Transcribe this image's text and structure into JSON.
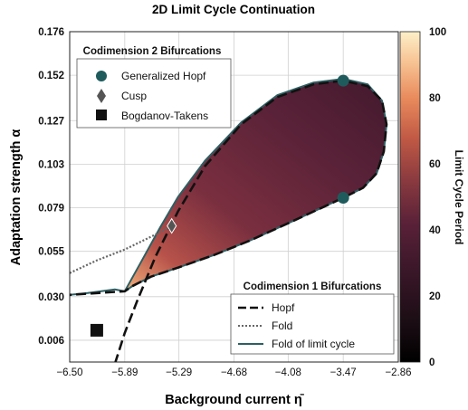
{
  "chart_data": {
    "type": "heatmap",
    "title": "2D Limit Cycle Continuation",
    "xlabel": "Background current η̄",
    "ylabel": "Adaptation strength α",
    "xlim": [
      -6.5,
      -2.86
    ],
    "ylim": [
      -0.006,
      0.176
    ],
    "x_ticks": [
      "−6.50",
      "−5.89",
      "−5.29",
      "−4.68",
      "−4.08",
      "−3.47",
      "−2.86"
    ],
    "y_ticks": [
      "0.006",
      "0.030",
      "0.055",
      "0.079",
      "0.103",
      "0.127",
      "0.152",
      "0.176"
    ],
    "colorbar": {
      "label": "Limit Cycle Period",
      "range": [
        0,
        100
      ],
      "ticks": [
        "0",
        "20",
        "40",
        "60",
        "80",
        "100"
      ]
    },
    "grid": true,
    "legends": [
      {
        "title": "Codimension 2 Bifurcations",
        "placement": "top-left",
        "entries": [
          "Generalized Hopf",
          "Cusp",
          "Bogdanov-Takens"
        ]
      },
      {
        "title": "Codimension 1 Bifurcations",
        "placement": "bottom-right",
        "entries": [
          "Hopf",
          "Fold",
          "Fold of limit cycle"
        ]
      }
    ],
    "series": [
      {
        "name": "Hopf",
        "style": "dashed",
        "x": [
          -6.0,
          -5.89,
          -5.75,
          -5.55,
          -5.3,
          -5.0,
          -4.6,
          -4.2,
          -3.8,
          -3.47,
          -3.2,
          -3.04,
          -2.99,
          -3.02,
          -3.1,
          -3.25,
          -3.47,
          -3.75,
          -4.1,
          -4.5,
          -4.9,
          -5.3,
          -5.6,
          -5.8,
          -5.89,
          -6.5
        ],
        "y": [
          -0.007,
          0.01,
          0.028,
          0.052,
          0.077,
          0.102,
          0.125,
          0.14,
          0.147,
          0.149,
          0.146,
          0.138,
          0.125,
          0.11,
          0.098,
          0.09,
          0.0845,
          0.078,
          0.07,
          0.061,
          0.053,
          0.046,
          0.041,
          0.036,
          0.033,
          0.031
        ]
      },
      {
        "name": "Fold",
        "style": "dotted",
        "x": [
          -6.5,
          -6.2,
          -5.89,
          -5.6,
          -5.37
        ],
        "y": [
          0.043,
          0.05,
          0.056,
          0.063,
          0.069
        ]
      },
      {
        "name": "Fold of limit cycle",
        "style": "solid",
        "x": [
          -5.89,
          -5.7,
          -5.5,
          -5.3,
          -5.0,
          -4.6,
          -4.2,
          -3.8,
          -3.47,
          -3.2,
          -3.04,
          -2.99,
          -3.02,
          -3.1,
          -3.25,
          -3.47,
          -3.75,
          -4.1,
          -4.5,
          -4.9,
          -5.3,
          -5.6,
          -5.8,
          -5.89,
          -6.0,
          -6.3,
          -6.5
        ],
        "y": [
          0.033,
          0.05,
          0.068,
          0.085,
          0.105,
          0.126,
          0.141,
          0.148,
          0.15,
          0.147,
          0.138,
          0.125,
          0.11,
          0.098,
          0.09,
          0.0845,
          0.078,
          0.07,
          0.061,
          0.053,
          0.046,
          0.041,
          0.036,
          0.033,
          0.034,
          0.032,
          0.031
        ]
      }
    ],
    "points": [
      {
        "name": "Generalized Hopf",
        "marker": "circle",
        "x": [
          -3.47,
          -3.47
        ],
        "y": [
          0.149,
          0.0845
        ]
      },
      {
        "name": "Cusp",
        "marker": "diamond",
        "x": [
          -5.37
        ],
        "y": [
          0.069
        ]
      },
      {
        "name": "Bogdanov-Takens",
        "marker": "square",
        "x": [
          -6.2
        ],
        "y": [
          0.0115
        ]
      }
    ],
    "region": {
      "name": "Limit Cycle Period",
      "boundary": "Fold of limit cycle",
      "period_low": 30,
      "period_high": 78
    },
    "colors": {
      "hopf": "#111111",
      "fold": "#666666",
      "fold_limit_cycle": "#2d5f63",
      "ghopf_marker": "#1f5b5c",
      "cusp_marker": "#555555",
      "bt_marker": "#111111",
      "grid": "#cfcfcf"
    }
  }
}
